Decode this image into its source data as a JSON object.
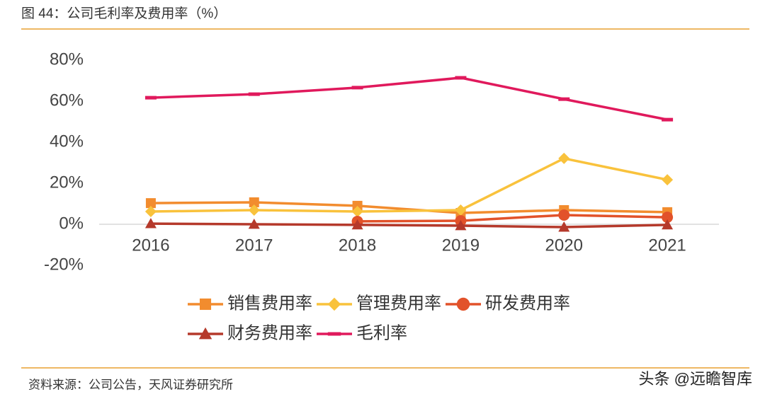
{
  "header": {
    "title": "图 44：公司毛利率及费用率（%）"
  },
  "footer": {
    "source": "资料来源：公司公告，天风证券研究所",
    "watermark": "头条 @远瞻智库"
  },
  "chart_data": {
    "type": "line",
    "categories": [
      "2016",
      "2017",
      "2018",
      "2019",
      "2020",
      "2021"
    ],
    "ylim": [
      -20,
      80
    ],
    "yticks": [
      {
        "value": -20,
        "label": "-20%"
      },
      {
        "value": 0,
        "label": "0%"
      },
      {
        "value": 20,
        "label": "20%"
      },
      {
        "value": 40,
        "label": "40%"
      },
      {
        "value": 60,
        "label": "60%"
      },
      {
        "value": 80,
        "label": "80%"
      }
    ],
    "grid": false,
    "legend": "bottom",
    "series": [
      {
        "name": "销售费用率",
        "color": "#f28c2e",
        "marker": "square",
        "values": [
          10.3,
          10.7,
          9.0,
          5.5,
          6.9,
          5.9
        ]
      },
      {
        "name": "管理费用率",
        "color": "#f9c23c",
        "marker": "diamond",
        "values": [
          6.2,
          6.9,
          6.2,
          6.9,
          32.1,
          21.7
        ]
      },
      {
        "name": "研发费用率",
        "color": "#e2522a",
        "marker": "circle",
        "values": [
          null,
          null,
          1.4,
          1.7,
          4.5,
          3.4
        ]
      },
      {
        "name": "财务费用率",
        "color": "#b5392b",
        "marker": "triangle",
        "values": [
          0.3,
          0,
          -0.3,
          -0.7,
          -1.4,
          -0.3
        ]
      },
      {
        "name": "毛利率",
        "color": "#e0195c",
        "marker": "dash",
        "values": [
          61.7,
          63.4,
          66.6,
          71.4,
          61.0,
          51.0
        ]
      }
    ]
  }
}
